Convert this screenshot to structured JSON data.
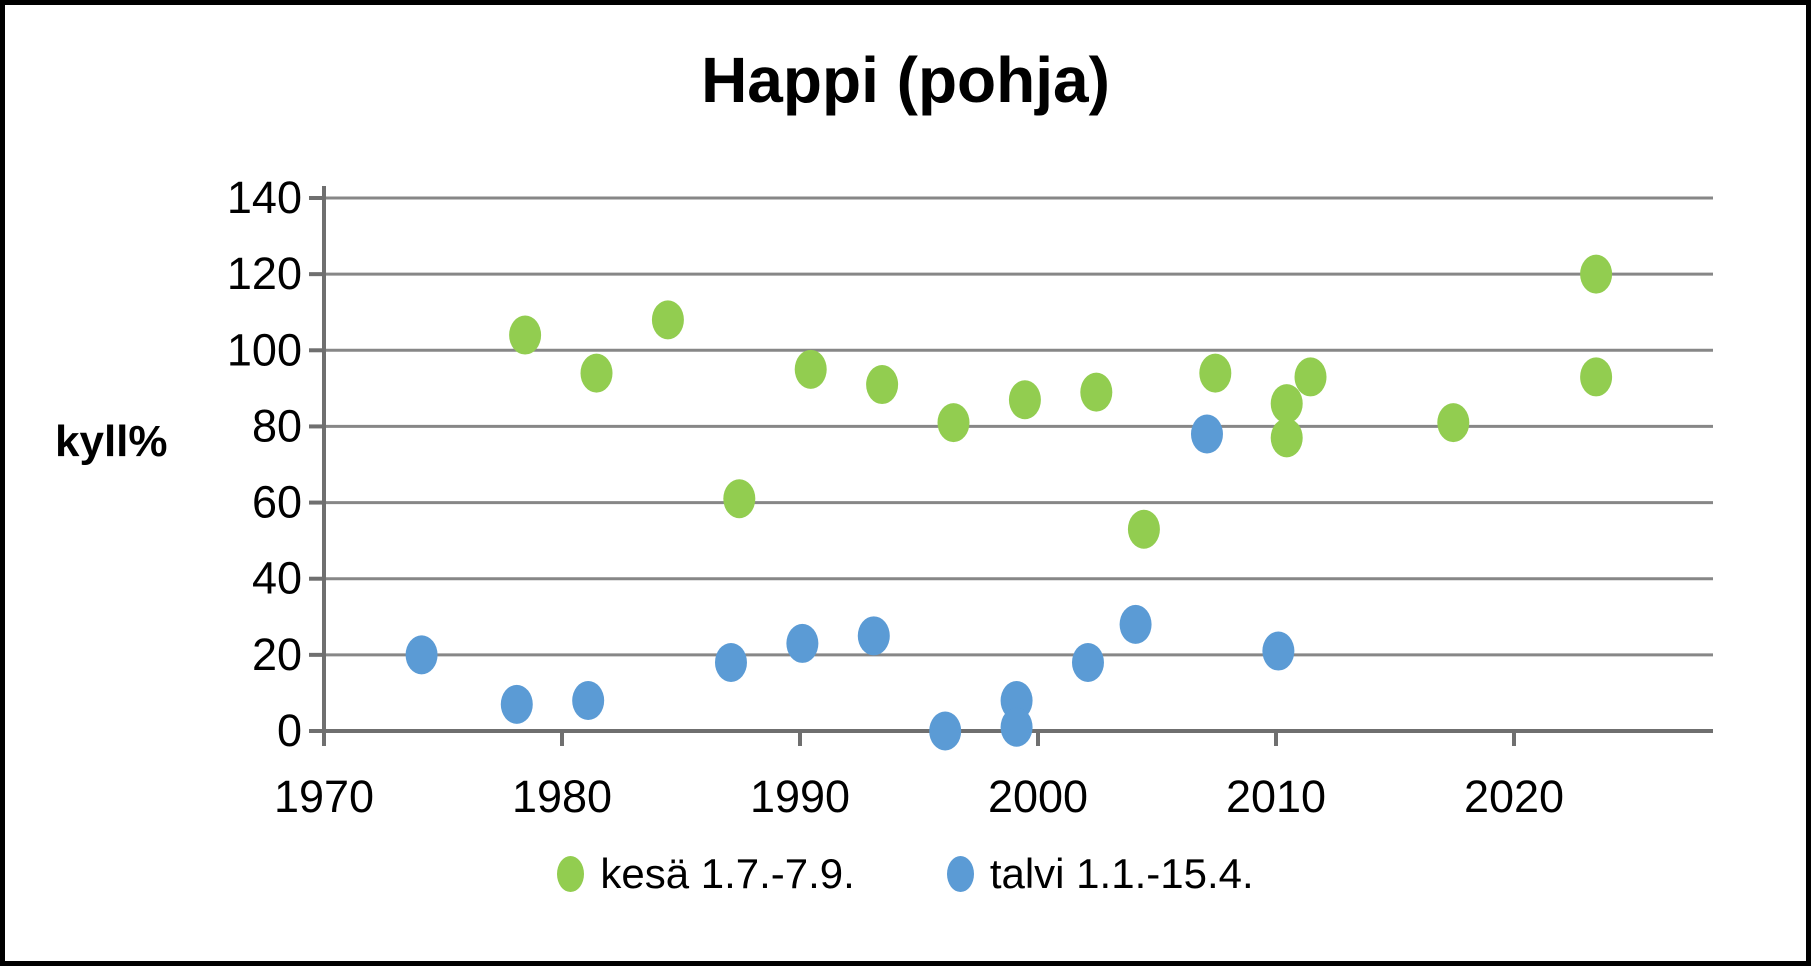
{
  "chart": {
    "title": "Happi (pohja)",
    "ylabel": "kyll%",
    "colors": {
      "background": "#ffffff",
      "frame": "#000000",
      "gridline": "#878787",
      "axis": "#6f6f6f",
      "text": "#000000",
      "kesa_green": "#92cd50",
      "talvi_blue": "#5b9bd5"
    },
    "chart_data": {
      "type": "scatter",
      "title": "Happi (pohja)",
      "xlabel": "",
      "ylabel": "kyll%",
      "ylim": [
        0,
        140
      ],
      "xlim": [
        1968,
        2028
      ],
      "x_ticks": [
        1970,
        1980,
        1990,
        2000,
        2010,
        2020
      ],
      "y_ticks": [
        0,
        20,
        40,
        60,
        80,
        100,
        120,
        140
      ],
      "grid": "horizontal-only",
      "legend_position": "bottom-center",
      "marker": "ellipse",
      "series": [
        {
          "name": "kesä 1.7.-7.9.",
          "color": "#92cd50",
          "season_x_offset": 0.45,
          "points": [
            [
              1978,
              104
            ],
            [
              1981,
              94
            ],
            [
              1984,
              108
            ],
            [
              1987,
              61
            ],
            [
              1990,
              95
            ],
            [
              1993,
              91
            ],
            [
              1996,
              81
            ],
            [
              1999,
              87
            ],
            [
              2002,
              89
            ],
            [
              2004,
              53
            ],
            [
              2007,
              94
            ],
            [
              2010,
              77
            ],
            [
              2010,
              86
            ],
            [
              2011,
              93
            ],
            [
              2017,
              81
            ],
            [
              2023,
              120
            ],
            [
              2023,
              93
            ]
          ]
        },
        {
          "name": "talvi 1.1.-15.4.",
          "color": "#5b9bd5",
          "season_x_offset": 0.1,
          "points": [
            [
              1974,
              20
            ],
            [
              1978,
              7
            ],
            [
              1981,
              8
            ],
            [
              1987,
              18
            ],
            [
              1990,
              23
            ],
            [
              1993,
              25
            ],
            [
              1996,
              0
            ],
            [
              1999,
              8
            ],
            [
              1999,
              1
            ],
            [
              2002,
              18
            ],
            [
              2004,
              28
            ],
            [
              2007,
              78
            ],
            [
              2010,
              21
            ]
          ]
        }
      ]
    }
  }
}
